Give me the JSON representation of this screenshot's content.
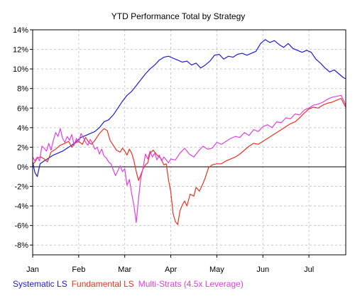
{
  "chart_data": {
    "type": "line",
    "title": "YTD Performance Total by Strategy",
    "xlabel": "",
    "ylabel": "",
    "x_ticks": [
      "Jan",
      "Feb",
      "Mar",
      "Apr",
      "May",
      "Jun",
      "Jul"
    ],
    "x_range": [
      0,
      6.8
    ],
    "y_ticks": [
      "14%",
      "12%",
      "10%",
      "8%",
      "6%",
      "4%",
      "2%",
      "0%",
      "-2%",
      "-4%",
      "-6%",
      "-8%"
    ],
    "ylim": [
      -9,
      14
    ],
    "grid": true,
    "zero_line": true,
    "legend_position": "bottom",
    "series": [
      {
        "name": "Systematic LS",
        "color": "#1a1adb",
        "points": [
          [
            0,
            0.5
          ],
          [
            0.05,
            -0.6
          ],
          [
            0.1,
            -1.0
          ],
          [
            0.16,
            0.3
          ],
          [
            0.25,
            0.6
          ],
          [
            0.35,
            0.9
          ],
          [
            0.45,
            1.2
          ],
          [
            0.55,
            1.4
          ],
          [
            0.65,
            1.6
          ],
          [
            0.75,
            1.9
          ],
          [
            0.85,
            2.2
          ],
          [
            0.95,
            2.6
          ],
          [
            1.05,
            3.0
          ],
          [
            1.15,
            3.2
          ],
          [
            1.25,
            3.4
          ],
          [
            1.35,
            3.6
          ],
          [
            1.45,
            4.0
          ],
          [
            1.55,
            4.6
          ],
          [
            1.65,
            4.8
          ],
          [
            1.75,
            5.3
          ],
          [
            1.85,
            6.0
          ],
          [
            1.95,
            6.7
          ],
          [
            2.05,
            7.3
          ],
          [
            2.15,
            7.7
          ],
          [
            2.25,
            8.3
          ],
          [
            2.35,
            8.9
          ],
          [
            2.45,
            9.5
          ],
          [
            2.55,
            10.0
          ],
          [
            2.65,
            10.4
          ],
          [
            2.75,
            10.9
          ],
          [
            2.85,
            11.2
          ],
          [
            2.95,
            11.3
          ],
          [
            3.05,
            11.1
          ],
          [
            3.15,
            10.9
          ],
          [
            3.25,
            10.7
          ],
          [
            3.35,
            10.8
          ],
          [
            3.45,
            10.4
          ],
          [
            3.55,
            10.6
          ],
          [
            3.65,
            10.1
          ],
          [
            3.75,
            10.4
          ],
          [
            3.85,
            10.8
          ],
          [
            3.95,
            11.4
          ],
          [
            4.05,
            11.5
          ],
          [
            4.15,
            11.0
          ],
          [
            4.25,
            11.3
          ],
          [
            4.35,
            11.2
          ],
          [
            4.45,
            11.5
          ],
          [
            4.55,
            11.6
          ],
          [
            4.65,
            11.4
          ],
          [
            4.75,
            11.6
          ],
          [
            4.85,
            11.8
          ],
          [
            4.95,
            12.6
          ],
          [
            5.05,
            13.0
          ],
          [
            5.15,
            12.7
          ],
          [
            5.25,
            12.9
          ],
          [
            5.35,
            12.5
          ],
          [
            5.45,
            12.2
          ],
          [
            5.55,
            12.6
          ],
          [
            5.65,
            12.1
          ],
          [
            5.75,
            11.9
          ],
          [
            5.85,
            11.7
          ],
          [
            5.95,
            11.9
          ],
          [
            6.05,
            11.7
          ],
          [
            6.15,
            11.0
          ],
          [
            6.25,
            10.6
          ],
          [
            6.35,
            10.1
          ],
          [
            6.45,
            9.7
          ],
          [
            6.55,
            9.9
          ],
          [
            6.65,
            9.5
          ],
          [
            6.75,
            9.1
          ],
          [
            6.8,
            9.0
          ]
        ]
      },
      {
        "name": "Fundamental LS",
        "color": "#e8321e",
        "points": [
          [
            0,
            0.2
          ],
          [
            0.05,
            0.5
          ],
          [
            0.1,
            0.9
          ],
          [
            0.18,
            1.0
          ],
          [
            0.25,
            0.8
          ],
          [
            0.32,
            0.5
          ],
          [
            0.4,
            1.5
          ],
          [
            0.5,
            1.8
          ],
          [
            0.6,
            2.2
          ],
          [
            0.7,
            2.4
          ],
          [
            0.78,
            2.6
          ],
          [
            0.85,
            2.0
          ],
          [
            0.92,
            2.4
          ],
          [
            1.0,
            2.6
          ],
          [
            1.08,
            2.3
          ],
          [
            1.15,
            3.0
          ],
          [
            1.22,
            2.5
          ],
          [
            1.28,
            2.3
          ],
          [
            1.35,
            2.7
          ],
          [
            1.45,
            3.4
          ],
          [
            1.55,
            3.9
          ],
          [
            1.62,
            3.7
          ],
          [
            1.68,
            2.7
          ],
          [
            1.75,
            2.2
          ],
          [
            1.82,
            1.7
          ],
          [
            1.9,
            1.5
          ],
          [
            1.95,
            1.9
          ],
          [
            2.0,
            1.6
          ],
          [
            2.05,
            1.2
          ],
          [
            2.1,
            1.8
          ],
          [
            2.15,
            1.4
          ],
          [
            2.2,
            0.6
          ],
          [
            2.25,
            -0.5
          ],
          [
            2.3,
            -1.4
          ],
          [
            2.35,
            -0.8
          ],
          [
            2.4,
            -0.2
          ],
          [
            2.45,
            0.2
          ],
          [
            2.5,
            0.4
          ],
          [
            2.55,
            1.4
          ],
          [
            2.62,
            1.7
          ],
          [
            2.7,
            1.2
          ],
          [
            2.78,
            0.9
          ],
          [
            2.85,
            0.2
          ],
          [
            2.9,
            0.3
          ],
          [
            2.95,
            -1.3
          ],
          [
            3.0,
            -2.6
          ],
          [
            3.05,
            -4.8
          ],
          [
            3.1,
            -5.6
          ],
          [
            3.15,
            -5.9
          ],
          [
            3.2,
            -4.5
          ],
          [
            3.25,
            -3.9
          ],
          [
            3.3,
            -3.5
          ],
          [
            3.35,
            -4.0
          ],
          [
            3.42,
            -2.8
          ],
          [
            3.5,
            -3.0
          ],
          [
            3.55,
            -2.1
          ],
          [
            3.62,
            -2.5
          ],
          [
            3.7,
            -1.7
          ],
          [
            3.75,
            -1.1
          ],
          [
            3.82,
            -0.1
          ],
          [
            3.9,
            0.2
          ],
          [
            4.0,
            0.3
          ],
          [
            4.1,
            0.3
          ],
          [
            4.2,
            0.6
          ],
          [
            4.3,
            0.8
          ],
          [
            4.4,
            1.0
          ],
          [
            4.5,
            1.3
          ],
          [
            4.6,
            1.7
          ],
          [
            4.7,
            2.1
          ],
          [
            4.8,
            2.4
          ],
          [
            4.9,
            2.3
          ],
          [
            5.0,
            2.6
          ],
          [
            5.1,
            2.9
          ],
          [
            5.2,
            3.2
          ],
          [
            5.3,
            3.5
          ],
          [
            5.4,
            3.8
          ],
          [
            5.5,
            4.1
          ],
          [
            5.6,
            4.4
          ],
          [
            5.7,
            4.6
          ],
          [
            5.8,
            5.0
          ],
          [
            5.9,
            5.5
          ],
          [
            6.0,
            5.9
          ],
          [
            6.1,
            6.1
          ],
          [
            6.2,
            6.0
          ],
          [
            6.3,
            6.3
          ],
          [
            6.4,
            6.5
          ],
          [
            6.5,
            6.6
          ],
          [
            6.6,
            6.8
          ],
          [
            6.7,
            7.0
          ],
          [
            6.75,
            6.5
          ],
          [
            6.8,
            6.1
          ]
        ]
      },
      {
        "name": "Multi-Strats (4.5x Leverage)",
        "color": "#e03ee0",
        "points": [
          [
            0,
            1.0
          ],
          [
            0.05,
            0.6
          ],
          [
            0.1,
            1.0
          ],
          [
            0.15,
            0.6
          ],
          [
            0.2,
            2.1
          ],
          [
            0.25,
            1.9
          ],
          [
            0.3,
            1.6
          ],
          [
            0.35,
            2.4
          ],
          [
            0.4,
            1.7
          ],
          [
            0.45,
            2.7
          ],
          [
            0.5,
            3.5
          ],
          [
            0.55,
            3.1
          ],
          [
            0.6,
            3.9
          ],
          [
            0.65,
            2.9
          ],
          [
            0.7,
            2.5
          ],
          [
            0.75,
            3.1
          ],
          [
            0.8,
            2.7
          ],
          [
            0.85,
            3.3
          ],
          [
            0.9,
            2.2
          ],
          [
            0.95,
            2.9
          ],
          [
            1.0,
            2.5
          ],
          [
            1.05,
            3.4
          ],
          [
            1.1,
            3.0
          ],
          [
            1.15,
            2.5
          ],
          [
            1.2,
            2.2
          ],
          [
            1.25,
            2.8
          ],
          [
            1.3,
            2.4
          ],
          [
            1.35,
            1.8
          ],
          [
            1.4,
            2.0
          ],
          [
            1.45,
            1.3
          ],
          [
            1.5,
            1.8
          ],
          [
            1.55,
            1.1
          ],
          [
            1.6,
            0.9
          ],
          [
            1.65,
            0.5
          ],
          [
            1.7,
            0.3
          ],
          [
            1.75,
            -0.3
          ],
          [
            1.8,
            -0.9
          ],
          [
            1.85,
            -0.4
          ],
          [
            1.9,
            0.1
          ],
          [
            1.95,
            -0.5
          ],
          [
            2.0,
            -0.2
          ],
          [
            2.05,
            -1.9
          ],
          [
            2.1,
            -1.3
          ],
          [
            2.15,
            -2.7
          ],
          [
            2.2,
            -4.0
          ],
          [
            2.25,
            -5.7
          ],
          [
            2.3,
            -3.2
          ],
          [
            2.35,
            -1.1
          ],
          [
            2.4,
            -0.1
          ],
          [
            2.45,
            1.3
          ],
          [
            2.5,
            0.8
          ],
          [
            2.55,
            1.6
          ],
          [
            2.6,
            1.0
          ],
          [
            2.65,
            1.4
          ],
          [
            2.7,
            0.7
          ],
          [
            2.75,
            1.2
          ],
          [
            2.8,
            0.6
          ],
          [
            2.85,
            1.0
          ],
          [
            2.9,
            0.7
          ],
          [
            2.95,
            0.4
          ],
          [
            3.0,
            0.8
          ],
          [
            3.1,
            0.7
          ],
          [
            3.2,
            1.4
          ],
          [
            3.3,
            1.9
          ],
          [
            3.4,
            1.3
          ],
          [
            3.5,
            1.0
          ],
          [
            3.6,
            1.6
          ],
          [
            3.7,
            2.1
          ],
          [
            3.8,
            1.8
          ],
          [
            3.9,
            1.9
          ],
          [
            4.0,
            2.5
          ],
          [
            4.1,
            2.3
          ],
          [
            4.2,
            2.6
          ],
          [
            4.3,
            2.9
          ],
          [
            4.4,
            3.1
          ],
          [
            4.5,
            3.0
          ],
          [
            4.6,
            3.5
          ],
          [
            4.7,
            3.2
          ],
          [
            4.8,
            3.8
          ],
          [
            4.9,
            3.6
          ],
          [
            5.0,
            4.1
          ],
          [
            5.1,
            4.3
          ],
          [
            5.2,
            4.0
          ],
          [
            5.3,
            4.6
          ],
          [
            5.4,
            4.5
          ],
          [
            5.5,
            5.0
          ],
          [
            5.6,
            4.9
          ],
          [
            5.7,
            5.4
          ],
          [
            5.8,
            5.3
          ],
          [
            5.9,
            5.8
          ],
          [
            6.0,
            6.0
          ],
          [
            6.1,
            6.3
          ],
          [
            6.2,
            6.4
          ],
          [
            6.3,
            6.6
          ],
          [
            6.4,
            6.9
          ],
          [
            6.5,
            7.1
          ],
          [
            6.6,
            7.2
          ],
          [
            6.7,
            7.3
          ],
          [
            6.75,
            6.8
          ],
          [
            6.8,
            6.3
          ]
        ]
      }
    ]
  }
}
